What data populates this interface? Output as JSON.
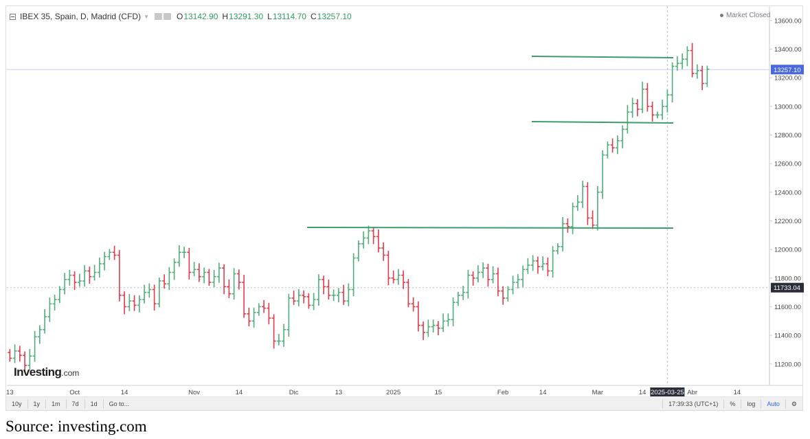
{
  "legend": {
    "symbol": "IBEX 35, Spain, D, Madrid (CFD)",
    "open_label": "O",
    "open_value": "13142.90",
    "high_label": "H",
    "high_value": "13291.30",
    "low_label": "L",
    "low_value": "13114.70",
    "close_label": "C",
    "close_value": "13257.10"
  },
  "market_status": "Market Closed",
  "logo": {
    "brand": "Investing",
    "suffix": ".com"
  },
  "source": "Source: investing.com",
  "toolbar": {
    "ranges": [
      "10y",
      "1y",
      "1m",
      "7d",
      "1d"
    ],
    "goto": "Go to...",
    "time": "17:39:33 (UTC+1)",
    "percent": "%",
    "log": "log",
    "auto": "Auto",
    "settings_icon": "gear-icon"
  },
  "colors": {
    "up": "#4ead78",
    "down": "#e0394a",
    "trendline": "#3a9e69",
    "price_tag": "#4a68dc",
    "ref_tag": "#2a2e39"
  },
  "chart_data": {
    "type": "ohlc",
    "title": "IBEX 35, Spain, D, Madrid (CFD)",
    "ylim": [
      11050,
      13700
    ],
    "y_ticks": [
      11200,
      11400,
      11600,
      11800,
      12000,
      12200,
      12400,
      12600,
      12800,
      13000,
      13200,
      13400,
      13600
    ],
    "x_ticks": [
      {
        "label": "13",
        "t": 0
      },
      {
        "label": "Oct",
        "t": 13
      },
      {
        "label": "14",
        "t": 23
      },
      {
        "label": "Nov",
        "t": 37
      },
      {
        "label": "14",
        "t": 46
      },
      {
        "label": "Dic",
        "t": 57
      },
      {
        "label": "13",
        "t": 66
      },
      {
        "label": "2025",
        "t": 77
      },
      {
        "label": "15",
        "t": 86
      },
      {
        "label": "Feb",
        "t": 99
      },
      {
        "label": "14",
        "t": 107
      },
      {
        "label": "Mar",
        "t": 118
      },
      {
        "label": "14",
        "t": 127
      },
      {
        "label": "2025-03-25",
        "t": 132,
        "highlight": true
      },
      {
        "label": "Abr",
        "t": 137
      },
      {
        "label": "14",
        "t": 146
      }
    ],
    "t_range": [
      -0.6,
      152.5
    ],
    "last_price": 13257.1,
    "reference_price": 11733.04,
    "cursor_t": 132,
    "close": [
      11240,
      11290,
      11260,
      11190,
      11255,
      11390,
      11440,
      11530,
      11620,
      11650,
      11720,
      11790,
      11820,
      11770,
      11780,
      11850,
      11810,
      11840,
      11900,
      11950,
      11980,
      11960,
      11680,
      11600,
      11640,
      11610,
      11650,
      11700,
      11720,
      11620,
      11780,
      11760,
      11840,
      11910,
      11980,
      11980,
      11840,
      11860,
      11810,
      11840,
      11770,
      11810,
      11870,
      11740,
      11690,
      11830,
      11770,
      11550,
      11500,
      11560,
      11600,
      11590,
      11520,
      11360,
      11360,
      11440,
      11660,
      11640,
      11680,
      11670,
      11610,
      11650,
      11790,
      11740,
      11680,
      11680,
      11700,
      11640,
      11720,
      11940,
      12040,
      12080,
      12130,
      12090,
      12010,
      11960,
      11800,
      11790,
      11820,
      11770,
      11620,
      11600,
      11470,
      11420,
      11460,
      11470,
      11450,
      11500,
      11510,
      11630,
      11680,
      11700,
      11820,
      11800,
      11840,
      11870,
      11790,
      11830,
      11710,
      11660,
      11720,
      11770,
      11790,
      11860,
      11890,
      11920,
      11880,
      11900,
      11850,
      11990,
      12020,
      12180,
      12160,
      12300,
      12330,
      12440,
      12220,
      12170,
      12400,
      12660,
      12730,
      12710,
      12760,
      12840,
      12960,
      13020,
      12980,
      13120,
      13000,
      12940,
      12940,
      13000,
      13080,
      13280,
      13300,
      13330,
      13390,
      13230,
      13250,
      13160,
      13260
    ],
    "high_low_pad": 40
  }
}
